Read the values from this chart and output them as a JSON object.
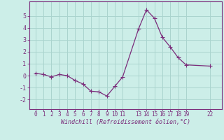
{
  "x": [
    0,
    1,
    2,
    3,
    4,
    5,
    6,
    7,
    8,
    9,
    10,
    11,
    13,
    14,
    15,
    16,
    17,
    18,
    19,
    22
  ],
  "y": [
    0.2,
    0.1,
    -0.1,
    0.1,
    0.0,
    -0.4,
    -0.7,
    -1.3,
    -1.35,
    -1.7,
    -0.9,
    -0.1,
    3.9,
    5.5,
    4.8,
    3.2,
    2.4,
    1.5,
    0.9,
    0.8
  ],
  "line_color": "#7b2d7b",
  "marker_color": "#7b2d7b",
  "bg_color": "#cceee8",
  "grid_color": "#aad4ce",
  "xlabel": "Windchill (Refroidissement éolien,°C)",
  "ylim": [
    -2.8,
    6.2
  ],
  "xlim": [
    -0.8,
    23.5
  ],
  "yticks": [
    -2,
    -1,
    0,
    1,
    2,
    3,
    4,
    5
  ],
  "xticks": [
    0,
    1,
    2,
    3,
    4,
    5,
    6,
    7,
    8,
    9,
    10,
    11,
    13,
    14,
    15,
    16,
    17,
    18,
    19,
    22
  ],
  "xtick_labels": [
    "0",
    "1",
    "2",
    "3",
    "4",
    "5",
    "6",
    "7",
    "8",
    "9",
    "10",
    "11",
    "13",
    "14",
    "15",
    "16",
    "17",
    "18",
    "19",
    "22"
  ],
  "axis_color": "#7b2d7b",
  "tick_color": "#7b2d7b",
  "label_color": "#7b2d7b",
  "tick_fontsize": 5.5,
  "label_fontsize": 6.0,
  "linewidth": 0.9,
  "markersize": 2.2
}
